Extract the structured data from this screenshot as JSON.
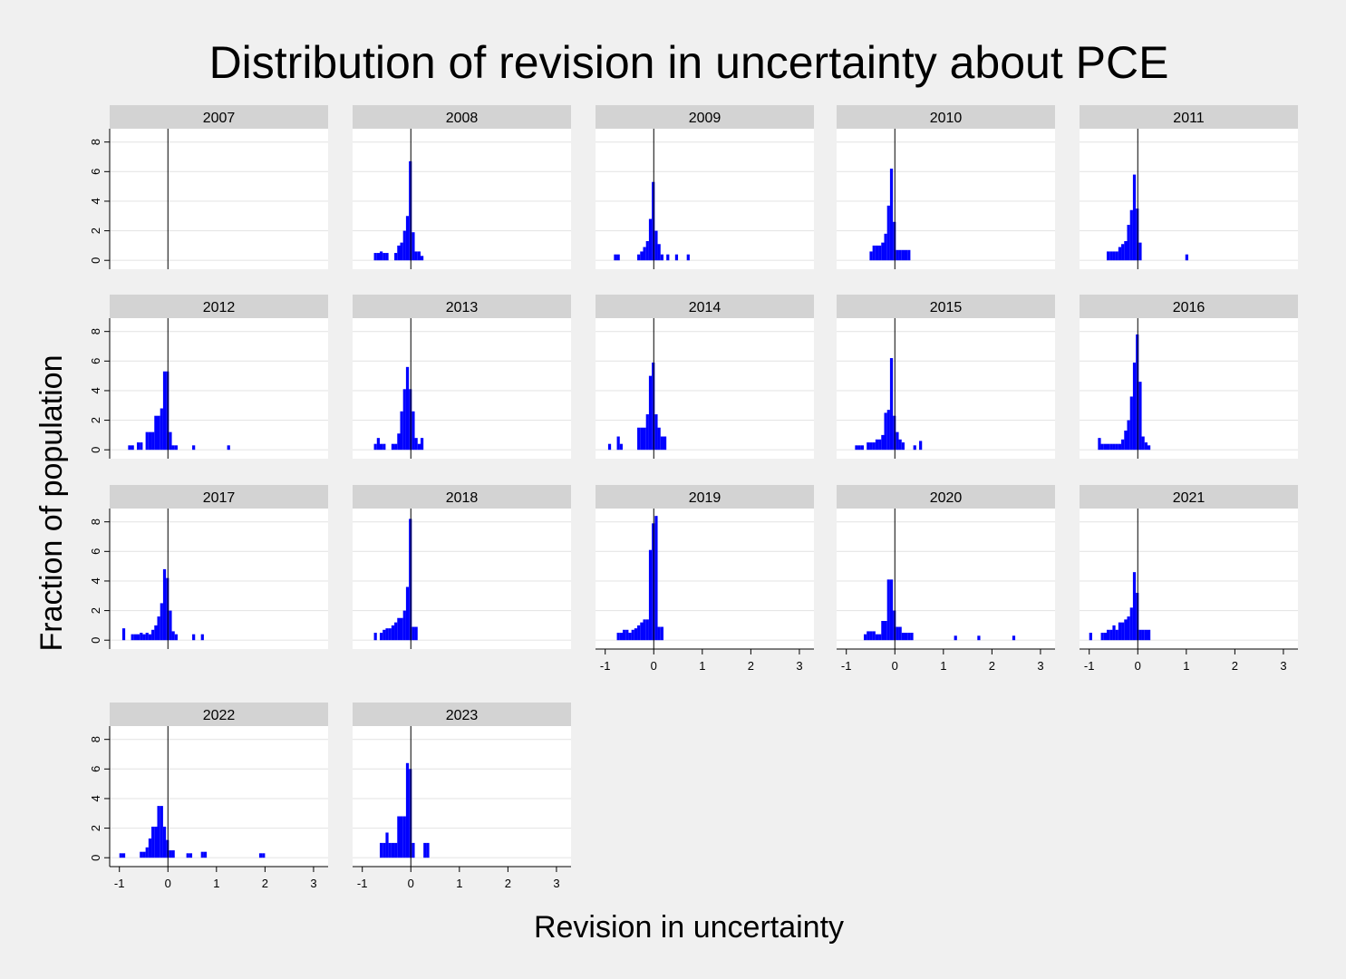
{
  "chart_data": {
    "type": "bar",
    "title": "Distribution of revision in uncertainty about PCE",
    "xlabel": "Revision in uncertainty",
    "ylabel": "Fraction of population",
    "xlim": [
      -1.2,
      3.3
    ],
    "ylim": [
      -0.6,
      8.9
    ],
    "x_ticks": [
      -1,
      0,
      1,
      2,
      3
    ],
    "x_tick_labels": [
      "-1",
      "0",
      "1",
      "2",
      "3"
    ],
    "y_ticks": [
      0,
      2,
      4,
      6,
      8
    ],
    "y_tick_labels": [
      "0",
      "2",
      "4",
      "6",
      "8"
    ],
    "bar_width": 0.06,
    "reference_line_x": 0,
    "grid": "horizontal",
    "bar_color": "#0000ff",
    "panels": [
      {
        "year": "2007",
        "bars": []
      },
      {
        "year": "2008",
        "bars": [
          [
            -0.73,
            0.5
          ],
          [
            -0.67,
            0.5
          ],
          [
            -0.61,
            0.6
          ],
          [
            -0.55,
            0.5
          ],
          [
            -0.49,
            0.5
          ],
          [
            -0.31,
            0.5
          ],
          [
            -0.25,
            1.0
          ],
          [
            -0.19,
            1.2
          ],
          [
            -0.13,
            2.0
          ],
          [
            -0.07,
            3.0
          ],
          [
            -0.01,
            6.7
          ],
          [
            0.05,
            1.9
          ],
          [
            0.11,
            0.6
          ],
          [
            0.17,
            0.6
          ],
          [
            0.23,
            0.3
          ]
        ]
      },
      {
        "year": "2009",
        "bars": [
          [
            -0.79,
            0.4
          ],
          [
            -0.73,
            0.4
          ],
          [
            -0.31,
            0.4
          ],
          [
            -0.25,
            0.6
          ],
          [
            -0.19,
            0.9
          ],
          [
            -0.13,
            1.3
          ],
          [
            -0.07,
            2.8
          ],
          [
            -0.01,
            5.3
          ],
          [
            0.05,
            2.0
          ],
          [
            0.11,
            1.1
          ],
          [
            0.17,
            0.4
          ],
          [
            0.29,
            0.4
          ],
          [
            0.47,
            0.4
          ],
          [
            0.71,
            0.4
          ]
        ]
      },
      {
        "year": "2010",
        "bars": [
          [
            -0.49,
            0.6
          ],
          [
            -0.43,
            1.0
          ],
          [
            -0.37,
            1.0
          ],
          [
            -0.31,
            1.0
          ],
          [
            -0.25,
            1.2
          ],
          [
            -0.19,
            1.8
          ],
          [
            -0.13,
            3.7
          ],
          [
            -0.07,
            6.2
          ],
          [
            -0.01,
            2.6
          ],
          [
            0.05,
            0.7
          ],
          [
            0.11,
            0.7
          ],
          [
            0.17,
            0.7
          ],
          [
            0.23,
            0.7
          ],
          [
            0.29,
            0.7
          ]
        ]
      },
      {
        "year": "2011",
        "bars": [
          [
            -0.61,
            0.6
          ],
          [
            -0.55,
            0.6
          ],
          [
            -0.49,
            0.6
          ],
          [
            -0.43,
            0.6
          ],
          [
            -0.37,
            0.9
          ],
          [
            -0.31,
            1.1
          ],
          [
            -0.25,
            1.3
          ],
          [
            -0.19,
            2.4
          ],
          [
            -0.13,
            3.4
          ],
          [
            -0.07,
            5.8
          ],
          [
            -0.01,
            3.5
          ],
          [
            0.05,
            1.2
          ],
          [
            1.01,
            0.4
          ]
        ]
      },
      {
        "year": "2012",
        "bars": [
          [
            -0.79,
            0.3
          ],
          [
            -0.73,
            0.3
          ],
          [
            -0.61,
            0.5
          ],
          [
            -0.55,
            0.5
          ],
          [
            -0.43,
            1.2
          ],
          [
            -0.37,
            1.2
          ],
          [
            -0.31,
            1.2
          ],
          [
            -0.25,
            2.3
          ],
          [
            -0.19,
            2.3
          ],
          [
            -0.13,
            2.8
          ],
          [
            -0.07,
            5.3
          ],
          [
            -0.01,
            5.3
          ],
          [
            0.05,
            1.2
          ],
          [
            0.11,
            0.3
          ],
          [
            0.17,
            0.3
          ],
          [
            0.53,
            0.3
          ],
          [
            1.25,
            0.3
          ]
        ]
      },
      {
        "year": "2013",
        "bars": [
          [
            -0.73,
            0.4
          ],
          [
            -0.67,
            0.8
          ],
          [
            -0.61,
            0.4
          ],
          [
            -0.55,
            0.4
          ],
          [
            -0.37,
            0.4
          ],
          [
            -0.31,
            0.4
          ],
          [
            -0.25,
            1.1
          ],
          [
            -0.19,
            2.6
          ],
          [
            -0.13,
            4.1
          ],
          [
            -0.07,
            5.6
          ],
          [
            -0.01,
            4.1
          ],
          [
            0.05,
            2.6
          ],
          [
            0.11,
            0.8
          ],
          [
            0.17,
            0.4
          ],
          [
            0.23,
            0.8
          ]
        ]
      },
      {
        "year": "2014",
        "bars": [
          [
            -0.91,
            0.4
          ],
          [
            -0.73,
            0.9
          ],
          [
            -0.67,
            0.4
          ],
          [
            -0.31,
            1.5
          ],
          [
            -0.25,
            1.5
          ],
          [
            -0.19,
            1.5
          ],
          [
            -0.13,
            2.4
          ],
          [
            -0.07,
            5.0
          ],
          [
            -0.01,
            5.9
          ],
          [
            0.05,
            2.4
          ],
          [
            0.11,
            1.5
          ],
          [
            0.17,
            0.9
          ],
          [
            0.23,
            0.9
          ]
        ]
      },
      {
        "year": "2015",
        "bars": [
          [
            -0.79,
            0.3
          ],
          [
            -0.73,
            0.3
          ],
          [
            -0.67,
            0.3
          ],
          [
            -0.55,
            0.5
          ],
          [
            -0.49,
            0.5
          ],
          [
            -0.43,
            0.5
          ],
          [
            -0.37,
            0.7
          ],
          [
            -0.31,
            0.7
          ],
          [
            -0.25,
            1.0
          ],
          [
            -0.19,
            2.5
          ],
          [
            -0.13,
            2.7
          ],
          [
            -0.07,
            6.2
          ],
          [
            -0.01,
            2.3
          ],
          [
            0.05,
            1.2
          ],
          [
            0.11,
            0.7
          ],
          [
            0.17,
            0.5
          ],
          [
            0.41,
            0.3
          ],
          [
            0.53,
            0.6
          ]
        ]
      },
      {
        "year": "2016",
        "bars": [
          [
            -0.79,
            0.8
          ],
          [
            -0.73,
            0.4
          ],
          [
            -0.67,
            0.4
          ],
          [
            -0.61,
            0.4
          ],
          [
            -0.55,
            0.4
          ],
          [
            -0.49,
            0.4
          ],
          [
            -0.43,
            0.4
          ],
          [
            -0.37,
            0.4
          ],
          [
            -0.31,
            0.7
          ],
          [
            -0.25,
            1.3
          ],
          [
            -0.19,
            2.0
          ],
          [
            -0.13,
            3.6
          ],
          [
            -0.07,
            5.9
          ],
          [
            -0.01,
            7.8
          ],
          [
            0.05,
            4.6
          ],
          [
            0.11,
            0.9
          ],
          [
            0.17,
            0.5
          ],
          [
            0.23,
            0.3
          ]
        ]
      },
      {
        "year": "2017",
        "bars": [
          [
            -0.91,
            0.8
          ],
          [
            -0.73,
            0.4
          ],
          [
            -0.67,
            0.4
          ],
          [
            -0.61,
            0.4
          ],
          [
            -0.55,
            0.5
          ],
          [
            -0.49,
            0.4
          ],
          [
            -0.43,
            0.5
          ],
          [
            -0.37,
            0.4
          ],
          [
            -0.31,
            0.7
          ],
          [
            -0.25,
            1.0
          ],
          [
            -0.19,
            1.6
          ],
          [
            -0.13,
            2.5
          ],
          [
            -0.07,
            4.8
          ],
          [
            -0.01,
            4.2
          ],
          [
            0.05,
            2.0
          ],
          [
            0.11,
            0.6
          ],
          [
            0.17,
            0.4
          ],
          [
            0.53,
            0.4
          ],
          [
            0.71,
            0.4
          ]
        ]
      },
      {
        "year": "2018",
        "bars": [
          [
            -0.73,
            0.5
          ],
          [
            -0.61,
            0.5
          ],
          [
            -0.55,
            0.7
          ],
          [
            -0.49,
            0.8
          ],
          [
            -0.43,
            0.8
          ],
          [
            -0.37,
            1.0
          ],
          [
            -0.31,
            1.2
          ],
          [
            -0.25,
            1.5
          ],
          [
            -0.19,
            1.5
          ],
          [
            -0.13,
            2.0
          ],
          [
            -0.07,
            3.6
          ],
          [
            -0.01,
            8.2
          ],
          [
            0.05,
            0.9
          ],
          [
            0.11,
            0.9
          ]
        ]
      },
      {
        "year": "2019",
        "bars": [
          [
            -0.73,
            0.5
          ],
          [
            -0.67,
            0.5
          ],
          [
            -0.61,
            0.7
          ],
          [
            -0.55,
            0.7
          ],
          [
            -0.49,
            0.5
          ],
          [
            -0.43,
            0.7
          ],
          [
            -0.37,
            0.8
          ],
          [
            -0.31,
            1.0
          ],
          [
            -0.25,
            1.2
          ],
          [
            -0.19,
            1.4
          ],
          [
            -0.13,
            1.4
          ],
          [
            -0.07,
            6.1
          ],
          [
            -0.01,
            7.9
          ],
          [
            0.05,
            8.4
          ],
          [
            0.11,
            0.9
          ],
          [
            0.17,
            0.9
          ]
        ]
      },
      {
        "year": "2020",
        "bars": [
          [
            -0.61,
            0.4
          ],
          [
            -0.55,
            0.6
          ],
          [
            -0.49,
            0.6
          ],
          [
            -0.43,
            0.6
          ],
          [
            -0.37,
            0.4
          ],
          [
            -0.31,
            0.4
          ],
          [
            -0.25,
            1.3
          ],
          [
            -0.19,
            1.3
          ],
          [
            -0.13,
            4.1
          ],
          [
            -0.07,
            4.1
          ],
          [
            -0.01,
            2.0
          ],
          [
            0.05,
            0.9
          ],
          [
            0.11,
            0.9
          ],
          [
            0.17,
            0.5
          ],
          [
            0.23,
            0.5
          ],
          [
            0.29,
            0.5
          ],
          [
            0.35,
            0.5
          ],
          [
            1.25,
            0.3
          ],
          [
            1.73,
            0.3
          ],
          [
            2.45,
            0.3
          ]
        ]
      },
      {
        "year": "2021",
        "bars": [
          [
            -0.97,
            0.5
          ],
          [
            -0.73,
            0.5
          ],
          [
            -0.67,
            0.5
          ],
          [
            -0.61,
            0.7
          ],
          [
            -0.55,
            0.7
          ],
          [
            -0.49,
            1.0
          ],
          [
            -0.43,
            0.7
          ],
          [
            -0.37,
            1.2
          ],
          [
            -0.31,
            1.2
          ],
          [
            -0.25,
            1.4
          ],
          [
            -0.19,
            1.6
          ],
          [
            -0.13,
            2.2
          ],
          [
            -0.07,
            4.6
          ],
          [
            -0.01,
            3.2
          ],
          [
            0.05,
            0.7
          ],
          [
            0.11,
            0.7
          ],
          [
            0.17,
            0.7
          ],
          [
            0.23,
            0.7
          ]
        ]
      },
      {
        "year": "2022",
        "bars": [
          [
            -0.97,
            0.3
          ],
          [
            -0.91,
            0.3
          ],
          [
            -0.55,
            0.4
          ],
          [
            -0.49,
            0.4
          ],
          [
            -0.43,
            0.7
          ],
          [
            -0.37,
            1.3
          ],
          [
            -0.31,
            2.1
          ],
          [
            -0.25,
            2.1
          ],
          [
            -0.19,
            3.5
          ],
          [
            -0.13,
            3.5
          ],
          [
            -0.07,
            2.1
          ],
          [
            -0.01,
            1.2
          ],
          [
            0.05,
            0.5
          ],
          [
            0.11,
            0.5
          ],
          [
            0.41,
            0.3
          ],
          [
            0.47,
            0.3
          ],
          [
            0.71,
            0.4
          ],
          [
            0.77,
            0.4
          ],
          [
            1.91,
            0.3
          ],
          [
            1.97,
            0.3
          ]
        ]
      },
      {
        "year": "2023",
        "bars": [
          [
            -0.61,
            1.0
          ],
          [
            -0.55,
            1.0
          ],
          [
            -0.49,
            1.7
          ],
          [
            -0.43,
            1.0
          ],
          [
            -0.37,
            1.0
          ],
          [
            -0.31,
            1.0
          ],
          [
            -0.25,
            2.8
          ],
          [
            -0.19,
            2.8
          ],
          [
            -0.13,
            2.8
          ],
          [
            -0.07,
            6.4
          ],
          [
            -0.01,
            6.0
          ],
          [
            0.05,
            1.0
          ],
          [
            0.29,
            1.0
          ],
          [
            0.35,
            1.0
          ]
        ]
      }
    ]
  }
}
